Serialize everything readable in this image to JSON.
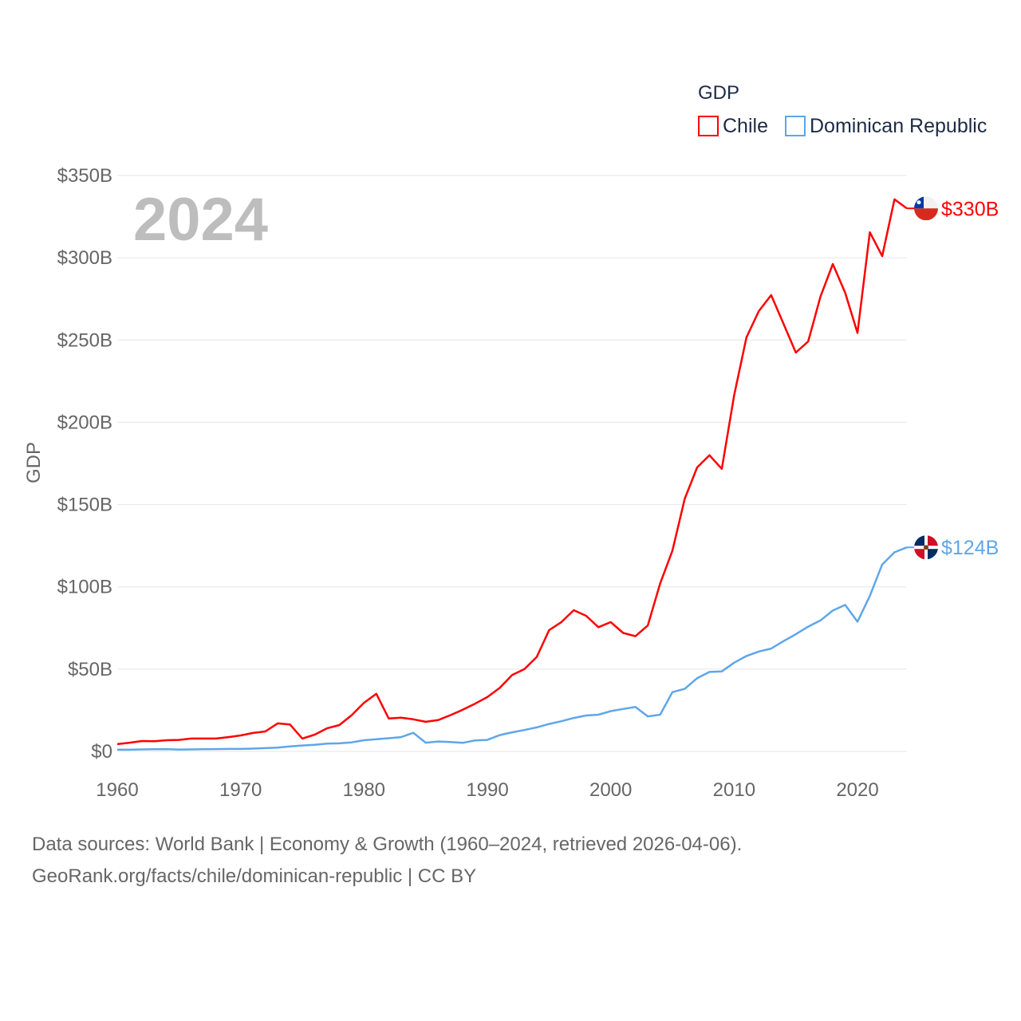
{
  "chart_data": {
    "type": "line",
    "title": "",
    "year_label": "2024",
    "xlabel": "",
    "ylabel": "GDP",
    "legend_title": "GDP",
    "legend_position": "top-right",
    "xlim": [
      1960,
      2024
    ],
    "ylim": [
      0,
      350
    ],
    "grid": true,
    "x_ticks": [
      1960,
      1970,
      1980,
      1990,
      2000,
      2010,
      2020
    ],
    "y_ticks": [
      0,
      50,
      100,
      150,
      200,
      250,
      300,
      350
    ],
    "y_tick_labels": [
      "$0",
      "$50B",
      "$100B",
      "$150B",
      "$200B",
      "$250B",
      "$300B",
      "$350B"
    ],
    "x_start": 1960,
    "series": [
      {
        "name": "Chile",
        "color": "#ff0000",
        "end_label": "$330B",
        "flag": "chile-flag",
        "values": [
          4.4,
          5.3,
          6.3,
          6.2,
          6.8,
          7.0,
          7.8,
          7.8,
          7.8,
          8.7,
          9.7,
          11.2,
          12.1,
          17.0,
          16.4,
          7.8,
          10.2,
          14.0,
          16.0,
          22.0,
          29.5,
          35.0,
          20.0,
          20.5,
          19.5,
          18.0,
          19.0,
          22.0,
          25.3,
          29.0,
          33.0,
          38.6,
          46.4,
          50.0,
          57.4,
          73.7,
          78.6,
          85.8,
          82.4,
          75.5,
          78.6,
          72.0,
          70.0,
          76.5,
          102.0,
          122.0,
          153.6,
          172.6,
          180.0,
          171.7,
          216.5,
          251.6,
          267.6,
          277.3,
          260.0,
          242.4,
          249.1,
          276.4,
          296.2,
          278.7,
          254.3,
          315.5,
          301.0,
          335.5,
          330.0
        ]
      },
      {
        "name": "Dominican Republic",
        "color": "#5fa6ea",
        "end_label": "$124B",
        "flag": "dominican-republic-flag",
        "values": [
          1.0,
          1.0,
          1.2,
          1.3,
          1.4,
          1.1,
          1.2,
          1.3,
          1.4,
          1.5,
          1.5,
          1.7,
          2.0,
          2.3,
          3.0,
          3.6,
          4.0,
          4.7,
          4.9,
          5.5,
          6.8,
          7.4,
          8.0,
          8.7,
          11.3,
          5.3,
          6.0,
          5.7,
          5.2,
          6.7,
          7.0,
          9.9,
          11.6,
          13.0,
          14.6,
          16.7,
          18.3,
          20.3,
          21.8,
          22.3,
          24.5,
          25.8,
          27.0,
          21.3,
          22.3,
          36.0,
          38.0,
          44.5,
          48.3,
          48.6,
          53.9,
          58.0,
          60.7,
          62.5,
          67.0,
          71.2,
          75.8,
          79.6,
          85.6,
          89.0,
          78.8,
          94.5,
          113.6,
          121.0,
          124.0
        ]
      }
    ]
  },
  "footer": {
    "line1": "Data sources: World Bank | Economy & Growth (1960–2024, retrieved 2026-04-06).",
    "line2": "GeoRank.org/facts/chile/dominican-republic | CC BY"
  }
}
